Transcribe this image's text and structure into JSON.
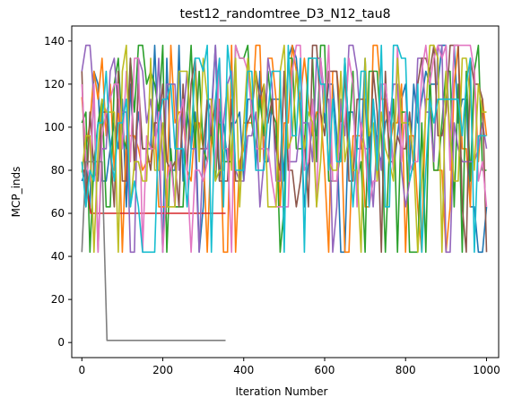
{
  "chart_data": {
    "type": "line",
    "title": "test12_randomtree_D3_N12_tau8",
    "xlabel": "Iteration Number",
    "ylabel": "MCP_inds",
    "xlim": [
      -25,
      1030
    ],
    "ylim": [
      -7,
      147
    ],
    "xticks": [
      0,
      200,
      400,
      600,
      800,
      1000
    ],
    "yticks": [
      0,
      20,
      40,
      60,
      80,
      100,
      120,
      140
    ],
    "grid": false,
    "legend": "none",
    "discrete_levels": [
      42,
      63,
      75,
      80,
      84,
      90,
      96,
      102,
      107,
      113,
      120,
      126,
      132,
      138
    ],
    "series": [
      {
        "color": "#1f77b4",
        "x_range": [
          0,
          1000
        ],
        "step": 10,
        "seed": 11,
        "start": 75
      },
      {
        "color": "#ff7f0e",
        "x_range": [
          0,
          1000
        ],
        "step": 10,
        "seed": 23,
        "start": 114
      },
      {
        "color": "#2ca02c",
        "x_range": [
          0,
          1000
        ],
        "step": 10,
        "seed": 37,
        "start": 102
      },
      {
        "color": "#d62728",
        "x_range": [
          0,
          355
        ],
        "points": [
          [
            0,
            80
          ],
          [
            5,
            80
          ],
          [
            18,
            65
          ],
          [
            22,
            60
          ],
          [
            355,
            60
          ]
        ]
      },
      {
        "color": "#9467bd",
        "x_range": [
          0,
          1000
        ],
        "step": 10,
        "seed": 41,
        "start": 126
      },
      {
        "color": "#8c564b",
        "x_range": [
          0,
          1000
        ],
        "step": 10,
        "seed": 53,
        "start": 126
      },
      {
        "color": "#e377c2",
        "x_range": [
          0,
          1000
        ],
        "step": 10,
        "seed": 67,
        "start": 120
      },
      {
        "color": "#7f7f7f",
        "x_range": [
          0,
          355
        ],
        "points": [
          [
            0,
            42
          ],
          [
            10,
            84
          ],
          [
            50,
            84
          ],
          [
            62,
            1
          ],
          [
            355,
            1
          ]
        ]
      },
      {
        "color": "#bcbd22",
        "x_range": [
          0,
          1000
        ],
        "step": 10,
        "seed": 79,
        "start": 79
      },
      {
        "color": "#17becf",
        "x_range": [
          0,
          1000
        ],
        "step": 10,
        "seed": 97,
        "start": 84
      }
    ]
  }
}
